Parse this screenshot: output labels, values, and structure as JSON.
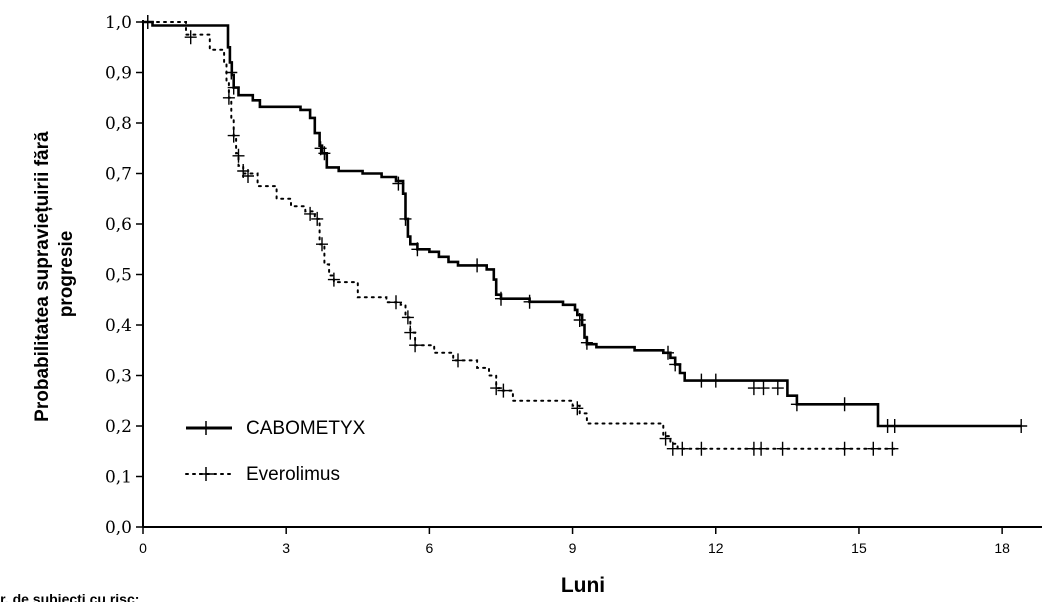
{
  "chart_data": {
    "type": "line",
    "title": "",
    "xlabel": "Luni",
    "ylabel_lines": [
      "Probabilitatea supraviețuirii fără",
      "progresie"
    ],
    "footnote": "Nr. de subiecți cu risc:",
    "xlim": [
      0,
      18.5
    ],
    "ylim": [
      0,
      1
    ],
    "x_ticks": [
      0,
      3,
      6,
      9,
      12,
      15,
      18
    ],
    "x_tick_labels": [
      "0",
      "3",
      "6",
      "9",
      "12",
      "15",
      "18"
    ],
    "y_ticks": [
      0,
      0.1,
      0.2,
      0.3,
      0.4,
      0.5,
      0.6,
      0.7,
      0.8,
      0.9,
      1.0
    ],
    "y_tick_labels": [
      "0,0",
      "0,1",
      "0,2",
      "0,3",
      "0,4",
      "0,5",
      "0,6",
      "0,7",
      "0,8",
      "0,9",
      "1,0"
    ],
    "grid": false,
    "legend_position": "bottom-left",
    "series": [
      {
        "name": "CABOMETYX",
        "style": "solid",
        "color": "#000000",
        "steps": [
          [
            0,
            1.0
          ],
          [
            0.2,
            0.993
          ],
          [
            1.75,
            0.993
          ],
          [
            1.78,
            0.95
          ],
          [
            1.82,
            0.92
          ],
          [
            1.86,
            0.895
          ],
          [
            1.9,
            0.87
          ],
          [
            2.0,
            0.855
          ],
          [
            2.3,
            0.845
          ],
          [
            2.45,
            0.832
          ],
          [
            3.3,
            0.826
          ],
          [
            3.5,
            0.81
          ],
          [
            3.6,
            0.78
          ],
          [
            3.7,
            0.755
          ],
          [
            3.75,
            0.74
          ],
          [
            3.85,
            0.712
          ],
          [
            4.1,
            0.705
          ],
          [
            4.6,
            0.7
          ],
          [
            5.0,
            0.693
          ],
          [
            5.3,
            0.685
          ],
          [
            5.45,
            0.66
          ],
          [
            5.5,
            0.61
          ],
          [
            5.55,
            0.575
          ],
          [
            5.6,
            0.56
          ],
          [
            5.75,
            0.55
          ],
          [
            6.0,
            0.545
          ],
          [
            6.2,
            0.535
          ],
          [
            6.4,
            0.525
          ],
          [
            6.6,
            0.518
          ],
          [
            7.2,
            0.51
          ],
          [
            7.35,
            0.49
          ],
          [
            7.4,
            0.46
          ],
          [
            7.5,
            0.452
          ],
          [
            8.1,
            0.446
          ],
          [
            8.8,
            0.44
          ],
          [
            9.05,
            0.43
          ],
          [
            9.1,
            0.42
          ],
          [
            9.2,
            0.4
          ],
          [
            9.25,
            0.375
          ],
          [
            9.3,
            0.362
          ],
          [
            9.5,
            0.356
          ],
          [
            10.3,
            0.35
          ],
          [
            10.9,
            0.345
          ],
          [
            11.05,
            0.335
          ],
          [
            11.15,
            0.322
          ],
          [
            11.25,
            0.305
          ],
          [
            11.35,
            0.29
          ],
          [
            13.5,
            0.26
          ],
          [
            13.7,
            0.243
          ],
          [
            15.4,
            0.2
          ],
          [
            18.4,
            0.2
          ]
        ],
        "censor_marks": [
          [
            0.1,
            1.0
          ],
          [
            1.85,
            0.9
          ],
          [
            1.9,
            0.87
          ],
          [
            3.72,
            0.75
          ],
          [
            3.8,
            0.74
          ],
          [
            5.35,
            0.68
          ],
          [
            5.5,
            0.61
          ],
          [
            5.75,
            0.55
          ],
          [
            7.0,
            0.518
          ],
          [
            7.5,
            0.452
          ],
          [
            8.1,
            0.446
          ],
          [
            9.15,
            0.41
          ],
          [
            9.3,
            0.365
          ],
          [
            11.0,
            0.345
          ],
          [
            11.15,
            0.322
          ],
          [
            11.7,
            0.29
          ],
          [
            12.0,
            0.29
          ],
          [
            12.8,
            0.275
          ],
          [
            13.0,
            0.275
          ],
          [
            13.3,
            0.275
          ],
          [
            13.7,
            0.243
          ],
          [
            14.7,
            0.243
          ],
          [
            15.6,
            0.2
          ],
          [
            15.75,
            0.2
          ],
          [
            18.4,
            0.2
          ]
        ]
      },
      {
        "name": "Everolimus",
        "style": "dotted",
        "color": "#000000",
        "steps": [
          [
            0,
            1.0
          ],
          [
            0.9,
            0.975
          ],
          [
            1.4,
            0.945
          ],
          [
            1.7,
            0.92
          ],
          [
            1.75,
            0.88
          ],
          [
            1.8,
            0.85
          ],
          [
            1.85,
            0.81
          ],
          [
            1.9,
            0.775
          ],
          [
            1.95,
            0.74
          ],
          [
            2.0,
            0.715
          ],
          [
            2.1,
            0.7
          ],
          [
            2.4,
            0.675
          ],
          [
            2.8,
            0.65
          ],
          [
            3.1,
            0.635
          ],
          [
            3.4,
            0.625
          ],
          [
            3.6,
            0.61
          ],
          [
            3.7,
            0.56
          ],
          [
            3.8,
            0.52
          ],
          [
            3.9,
            0.498
          ],
          [
            4.0,
            0.485
          ],
          [
            4.5,
            0.455
          ],
          [
            5.1,
            0.445
          ],
          [
            5.4,
            0.44
          ],
          [
            5.5,
            0.415
          ],
          [
            5.6,
            0.385
          ],
          [
            5.7,
            0.36
          ],
          [
            6.1,
            0.345
          ],
          [
            6.5,
            0.33
          ],
          [
            7.0,
            0.315
          ],
          [
            7.25,
            0.3
          ],
          [
            7.4,
            0.275
          ],
          [
            7.5,
            0.27
          ],
          [
            7.75,
            0.25
          ],
          [
            9.0,
            0.24
          ],
          [
            9.15,
            0.225
          ],
          [
            9.3,
            0.205
          ],
          [
            10.9,
            0.18
          ],
          [
            11.05,
            0.165
          ],
          [
            11.2,
            0.155
          ],
          [
            15.8,
            0.155
          ]
        ],
        "censor_marks": [
          [
            0.1,
            1.0
          ],
          [
            1.0,
            0.97
          ],
          [
            1.8,
            0.85
          ],
          [
            1.9,
            0.775
          ],
          [
            2.0,
            0.735
          ],
          [
            2.1,
            0.705
          ],
          [
            2.2,
            0.695
          ],
          [
            3.5,
            0.62
          ],
          [
            3.65,
            0.61
          ],
          [
            3.75,
            0.56
          ],
          [
            4.0,
            0.49
          ],
          [
            5.3,
            0.445
          ],
          [
            5.55,
            0.415
          ],
          [
            5.6,
            0.385
          ],
          [
            5.7,
            0.36
          ],
          [
            6.6,
            0.33
          ],
          [
            7.4,
            0.275
          ],
          [
            7.55,
            0.27
          ],
          [
            9.1,
            0.235
          ],
          [
            10.95,
            0.175
          ],
          [
            11.1,
            0.155
          ],
          [
            11.3,
            0.155
          ],
          [
            11.7,
            0.155
          ],
          [
            12.8,
            0.155
          ],
          [
            12.95,
            0.155
          ],
          [
            13.4,
            0.155
          ],
          [
            14.7,
            0.155
          ],
          [
            15.3,
            0.155
          ],
          [
            15.7,
            0.155
          ]
        ]
      }
    ]
  }
}
